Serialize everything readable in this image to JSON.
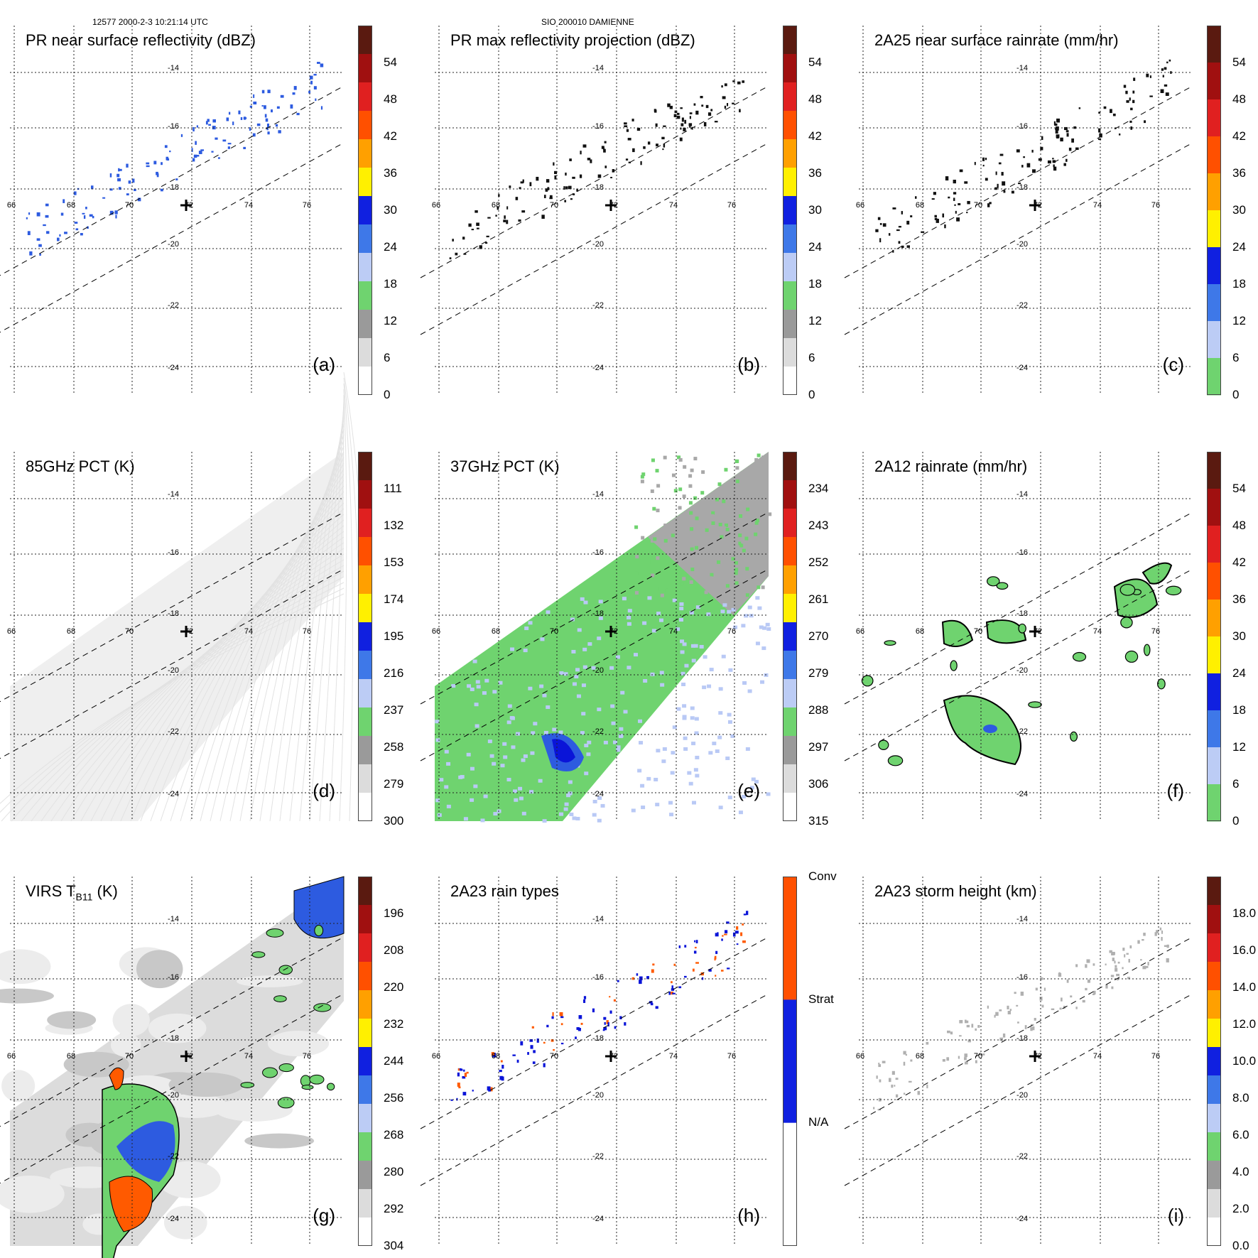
{
  "header": {
    "left": "12577 2000-2-3 10:21:14 UTC",
    "center": "SIO 200010 DAMIENNE"
  },
  "colors": {
    "green": "#6fd36f",
    "light_blue": "#b9c9f5",
    "blue": "#2d5be0",
    "dark_blue": "#0a14d8",
    "orange": "#ff5a00",
    "gray": "#a8a8a8",
    "lightgray": "#dedede"
  },
  "grid": {
    "lon_labels": [
      "66",
      "68",
      "70",
      "72",
      "74",
      "76"
    ],
    "lat_labels": [
      "-14",
      "-16",
      "-18",
      "-20",
      "-22",
      "-24"
    ]
  },
  "panels": [
    {
      "title": "PR near surface reflectivity (dBZ)",
      "label": "(a)",
      "ticks": [
        "54",
        "48",
        "42",
        "36",
        "30",
        "24",
        "18",
        "12",
        "6",
        "0"
      ],
      "bar": [
        "#5a1a10",
        "#a01010",
        "#e02020",
        "#ff5000",
        "#ffa000",
        "#fff000",
        "#1020e0",
        "#3e78e8",
        "#bcccf5",
        "#6fd36f",
        "#9a9a9a",
        "#dcdcdc",
        "#ffffff"
      ]
    },
    {
      "title": "PR max reflectivity projection (dBZ)",
      "label": "(b)",
      "ticks": [
        "54",
        "48",
        "42",
        "36",
        "30",
        "24",
        "18",
        "12",
        "6",
        "0"
      ],
      "bar": [
        "#5a1a10",
        "#a01010",
        "#e02020",
        "#ff5000",
        "#ffa000",
        "#fff000",
        "#1020e0",
        "#3e78e8",
        "#bcccf5",
        "#6fd36f",
        "#9a9a9a",
        "#dcdcdc",
        "#ffffff"
      ]
    },
    {
      "title": "2A25 near surface rainrate (mm/hr)",
      "label": "(c)",
      "ticks": [
        "54",
        "48",
        "42",
        "36",
        "30",
        "24",
        "18",
        "12",
        "6",
        "0"
      ],
      "bar": [
        "#5a1a10",
        "#a01010",
        "#e02020",
        "#ff5000",
        "#ffa000",
        "#fff000",
        "#1020e0",
        "#3e78e8",
        "#bcccf5",
        "#6fd36f"
      ]
    },
    {
      "title": "85GHz PCT (K)",
      "label": "(d)",
      "ticks": [
        "111",
        "132",
        "153",
        "174",
        "195",
        "216",
        "237",
        "258",
        "279",
        "300"
      ],
      "bar": [
        "#5a1a10",
        "#a01010",
        "#e02020",
        "#ff5000",
        "#ffa000",
        "#fff000",
        "#1020e0",
        "#3e78e8",
        "#bcccf5",
        "#6fd36f",
        "#9a9a9a",
        "#dcdcdc",
        "#ffffff"
      ]
    },
    {
      "title": "37GHz PCT (K)",
      "label": "(e)",
      "ticks": [
        "234",
        "243",
        "252",
        "261",
        "270",
        "279",
        "288",
        "297",
        "306",
        "315"
      ],
      "bar": [
        "#5a1a10",
        "#a01010",
        "#e02020",
        "#ff5000",
        "#ffa000",
        "#fff000",
        "#1020e0",
        "#3e78e8",
        "#bcccf5",
        "#6fd36f",
        "#9a9a9a",
        "#dcdcdc",
        "#ffffff"
      ]
    },
    {
      "title": "2A12 rainrate (mm/hr)",
      "label": "(f)",
      "ticks": [
        "54",
        "48",
        "42",
        "36",
        "30",
        "24",
        "18",
        "12",
        "6",
        "0"
      ],
      "bar": [
        "#5a1a10",
        "#a01010",
        "#e02020",
        "#ff5000",
        "#ffa000",
        "#fff000",
        "#1020e0",
        "#3e78e8",
        "#bcccf5",
        "#6fd36f"
      ]
    },
    {
      "title": "VIRS T",
      "title_sub": "B11",
      "title_tail": " (K)",
      "label": "(g)",
      "ticks": [
        "196",
        "208",
        "220",
        "232",
        "244",
        "256",
        "268",
        "280",
        "292",
        "304"
      ],
      "bar": [
        "#5a1a10",
        "#a01010",
        "#e02020",
        "#ff5000",
        "#ffa000",
        "#fff000",
        "#1020e0",
        "#3e78e8",
        "#bcccf5",
        "#6fd36f",
        "#9a9a9a",
        "#dcdcdc",
        "#ffffff"
      ]
    },
    {
      "title": "2A23 rain types",
      "label": "(h)",
      "ticks": [
        "Conv",
        "Strat",
        "N/A"
      ],
      "bar": [
        "#ff5000",
        "#1020e0",
        "#ffffff"
      ]
    },
    {
      "title": "2A23 storm height (km)",
      "label": "(i)",
      "ticks": [
        "18.0",
        "16.0",
        "14.0",
        "12.0",
        "10.0",
        "8.0",
        "6.0",
        "4.0",
        "2.0",
        "0.0"
      ],
      "bar": [
        "#5a1a10",
        "#a01010",
        "#e02020",
        "#ff5000",
        "#ffa000",
        "#fff000",
        "#1020e0",
        "#3e78e8",
        "#bcccf5",
        "#6fd36f",
        "#9a9a9a",
        "#dcdcdc",
        "#ffffff"
      ]
    }
  ]
}
